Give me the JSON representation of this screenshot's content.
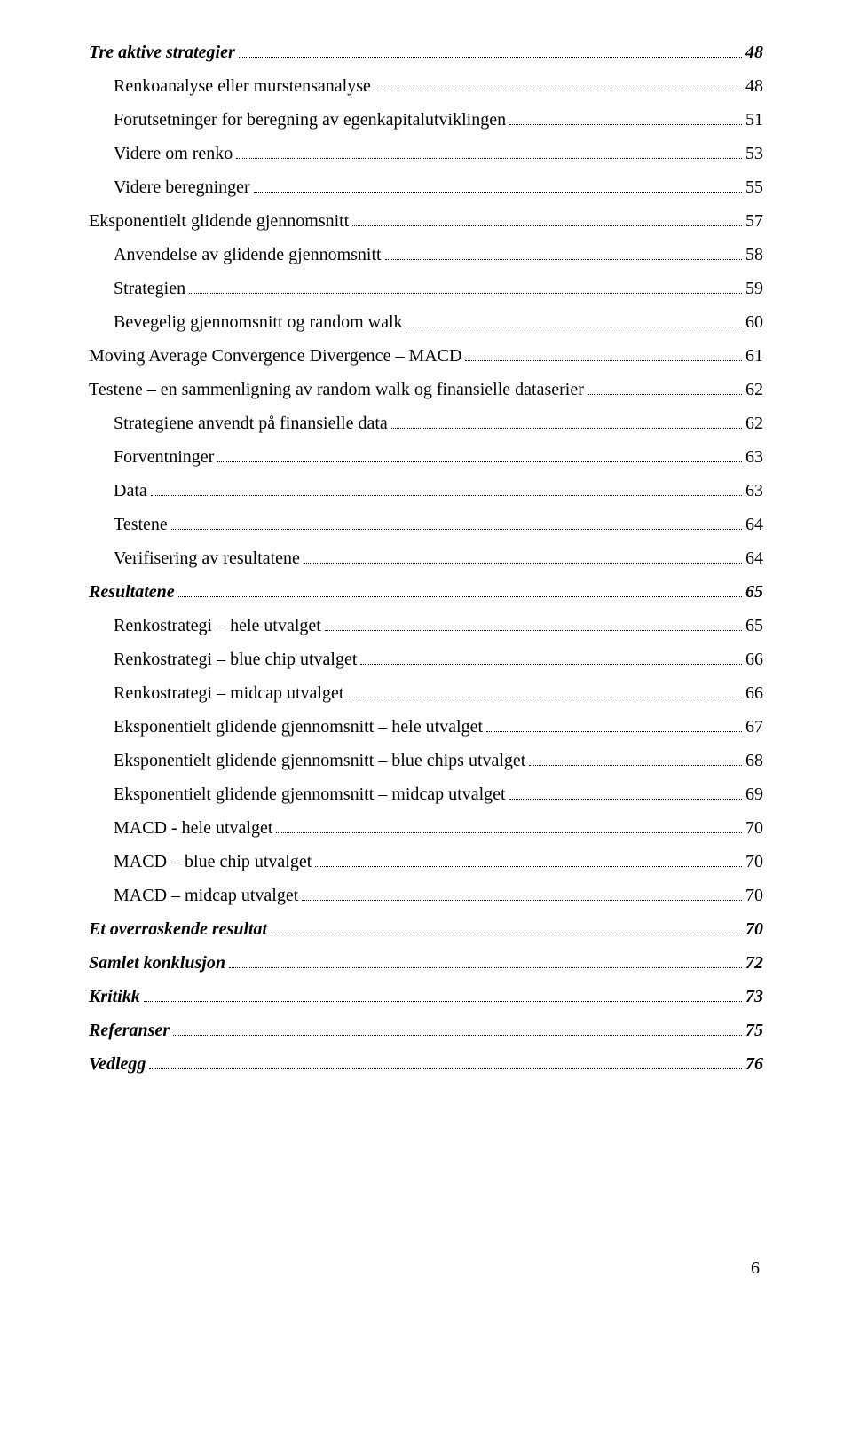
{
  "toc": [
    {
      "label": "Tre aktive strategier",
      "page": "48",
      "level": 0,
      "style": "bold-italic"
    },
    {
      "label": "Renkoanalyse  eller murstensanalyse",
      "page": "48",
      "level": 1,
      "style": ""
    },
    {
      "label": "Forutsetninger for beregning av egenkapitalutviklingen",
      "page": "51",
      "level": 1,
      "style": ""
    },
    {
      "label": "Videre om renko",
      "page": "53",
      "level": 1,
      "style": ""
    },
    {
      "label": "Videre beregninger",
      "page": "55",
      "level": 1,
      "style": ""
    },
    {
      "label": "Eksponentielt glidende gjennomsnitt",
      "page": "57",
      "level": 0,
      "style": ""
    },
    {
      "label": "Anvendelse av glidende gjennomsnitt",
      "page": "58",
      "level": 1,
      "style": ""
    },
    {
      "label": "Strategien",
      "page": "59",
      "level": 1,
      "style": ""
    },
    {
      "label": "Bevegelig gjennomsnitt og random walk",
      "page": "60",
      "level": 1,
      "style": ""
    },
    {
      "label": "Moving Average Convergence Divergence – MACD",
      "page": "61",
      "level": 0,
      "style": ""
    },
    {
      "label": "Testene – en sammenligning av random walk og finansielle dataserier",
      "page": "62",
      "level": 0,
      "style": ""
    },
    {
      "label": "Strategiene anvendt på finansielle data",
      "page": "62",
      "level": 1,
      "style": ""
    },
    {
      "label": "Forventninger",
      "page": "63",
      "level": 1,
      "style": ""
    },
    {
      "label": "Data",
      "page": "63",
      "level": 1,
      "style": ""
    },
    {
      "label": "Testene",
      "page": "64",
      "level": 1,
      "style": ""
    },
    {
      "label": "Verifisering av resultatene",
      "page": "64",
      "level": 1,
      "style": ""
    },
    {
      "label": "Resultatene",
      "page": "65",
      "level": 0,
      "style": "bold-italic"
    },
    {
      "label": "Renkostrategi – hele utvalget",
      "page": "65",
      "level": 1,
      "style": ""
    },
    {
      "label": "Renkostrategi – blue chip utvalget",
      "page": "66",
      "level": 1,
      "style": ""
    },
    {
      "label": "Renkostrategi – midcap utvalget",
      "page": "66",
      "level": 1,
      "style": ""
    },
    {
      "label": "Eksponentielt glidende gjennomsnitt – hele utvalget",
      "page": "67",
      "level": 1,
      "style": ""
    },
    {
      "label": "Eksponentielt glidende gjennomsnitt – blue chips utvalget",
      "page": "68",
      "level": 1,
      "style": ""
    },
    {
      "label": "Eksponentielt glidende gjennomsnitt – midcap utvalget",
      "page": "69",
      "level": 1,
      "style": ""
    },
    {
      "label": "MACD - hele utvalget",
      "page": "70",
      "level": 1,
      "style": ""
    },
    {
      "label": "MACD – blue chip utvalget",
      "page": "70",
      "level": 1,
      "style": ""
    },
    {
      "label": "MACD – midcap utvalget",
      "page": "70",
      "level": 1,
      "style": ""
    },
    {
      "label": "Et overraskende resultat",
      "page": "70",
      "level": 0,
      "style": "bold-italic"
    },
    {
      "label": "Samlet konklusjon",
      "page": "72",
      "level": 0,
      "style": "bold-italic"
    },
    {
      "label": "Kritikk",
      "page": "73",
      "level": 0,
      "style": "bold-italic"
    },
    {
      "label": "Referanser",
      "page": "75",
      "level": 0,
      "style": "bold-italic"
    },
    {
      "label": "Vedlegg",
      "page": "76",
      "level": 0,
      "style": "bold-italic"
    }
  ],
  "page_number": "6"
}
